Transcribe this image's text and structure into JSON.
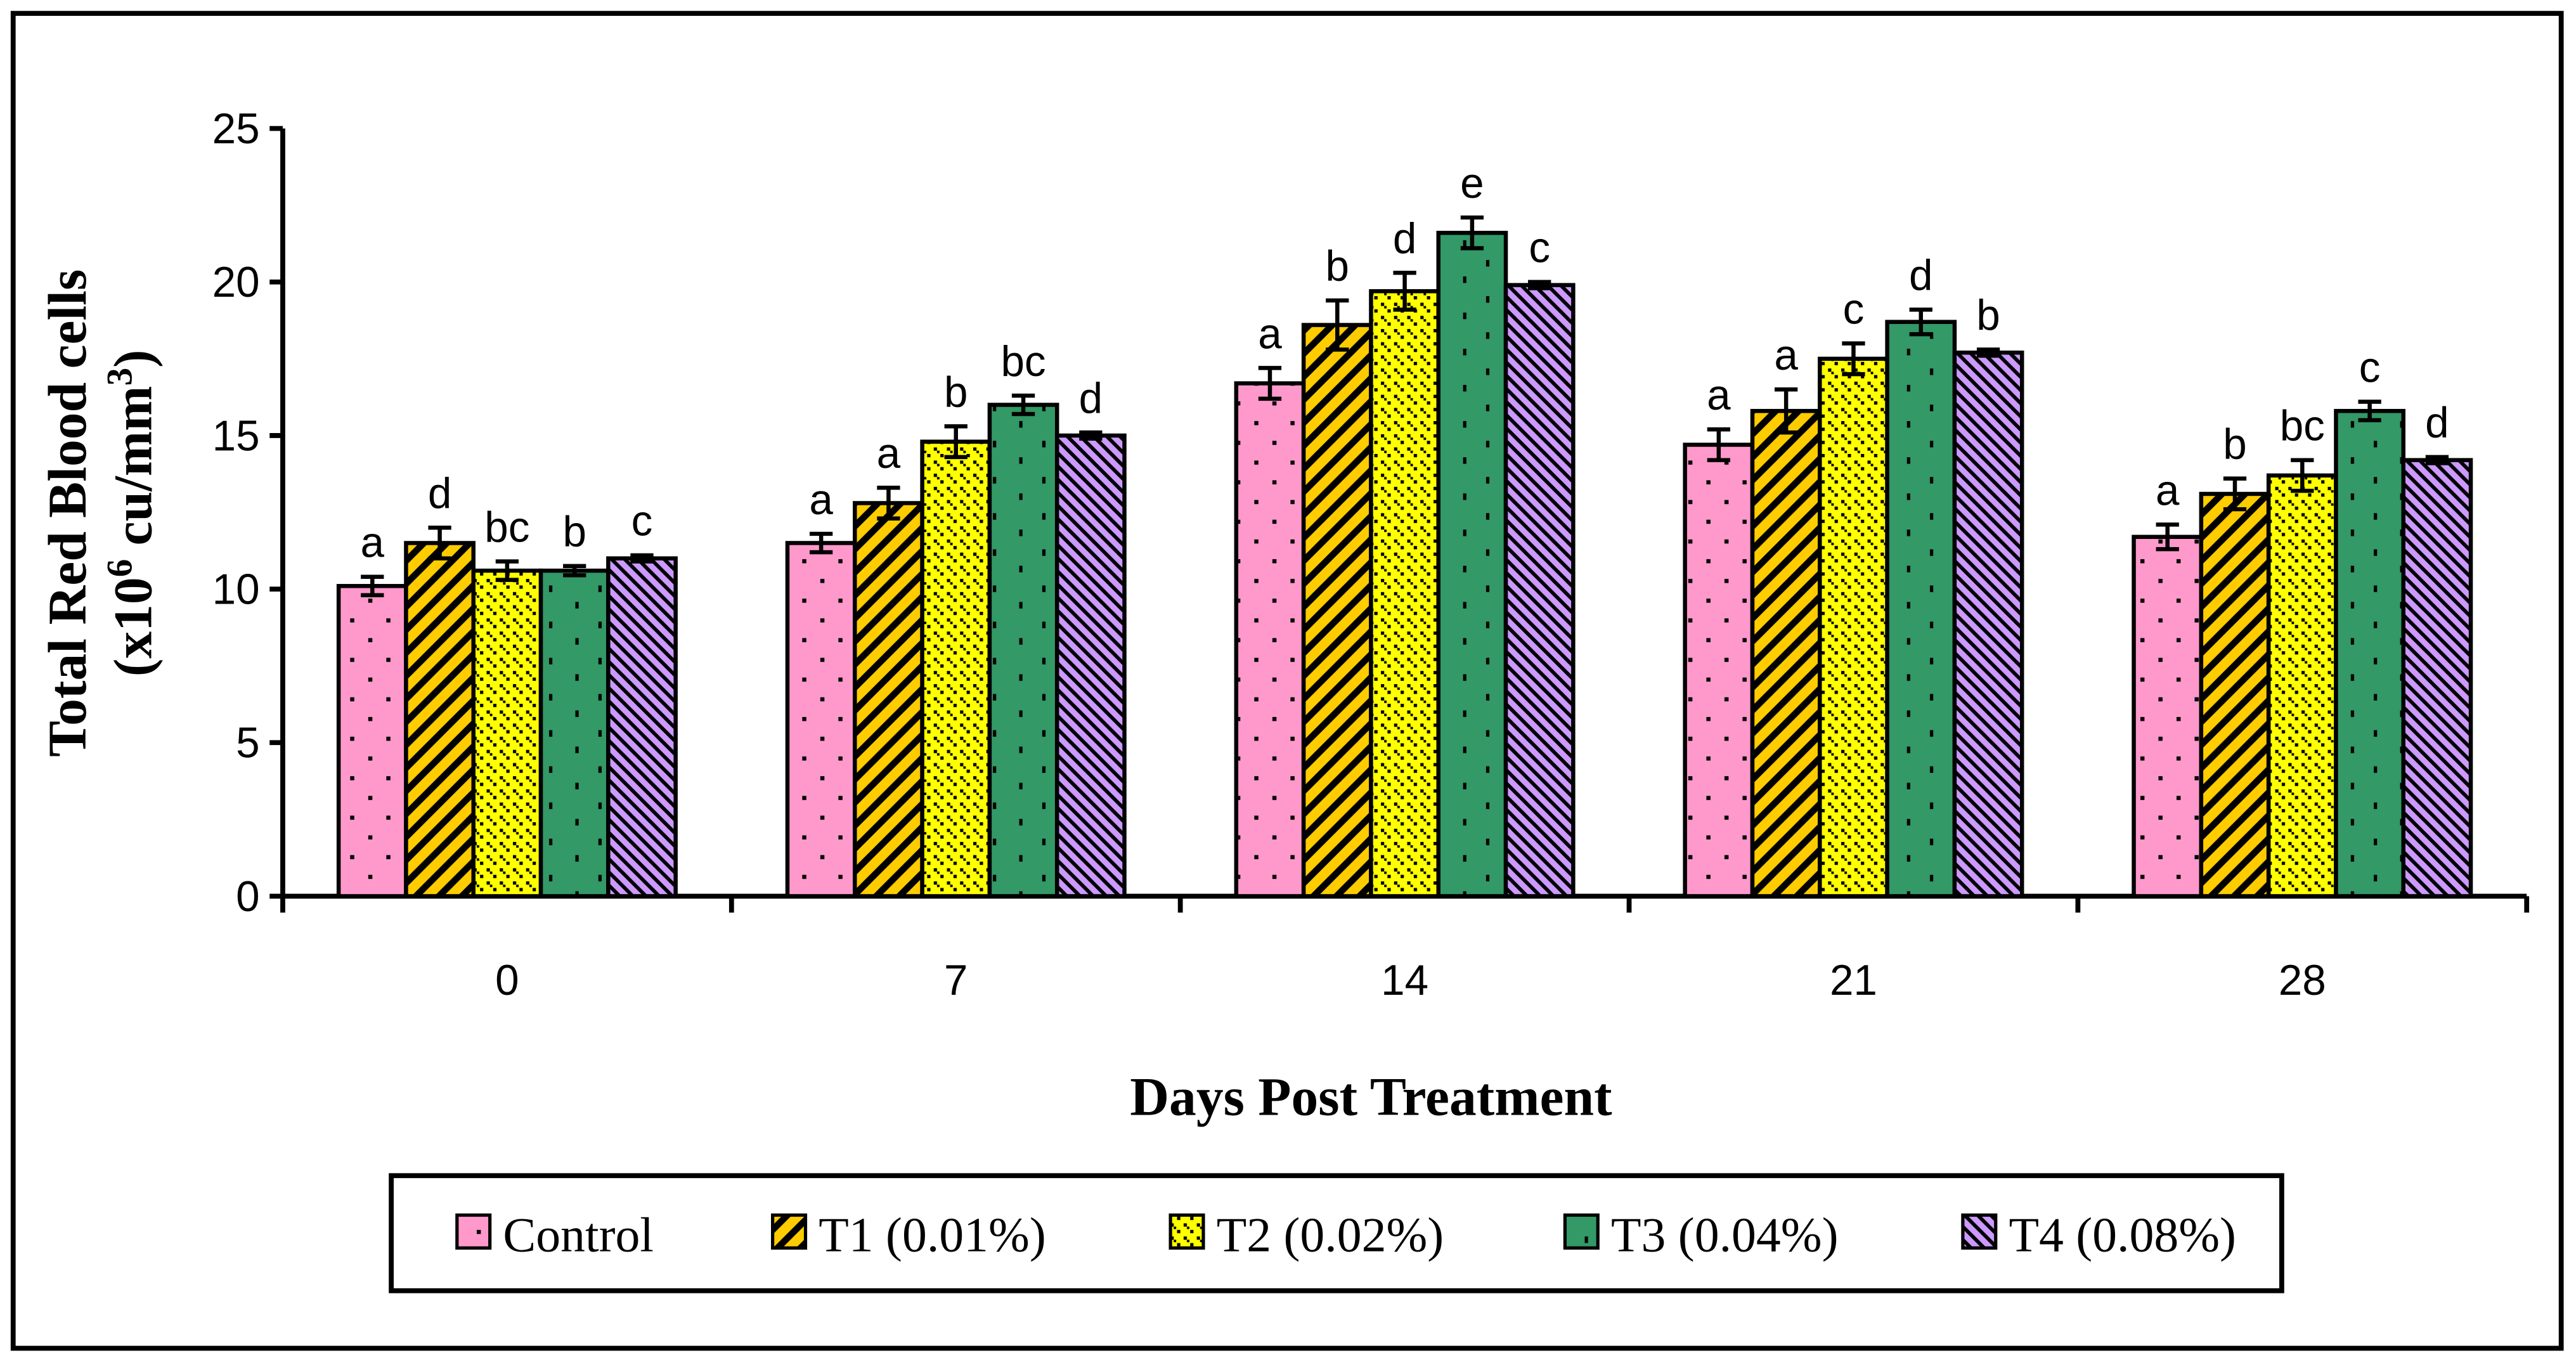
{
  "chart_data": {
    "type": "bar",
    "title": "",
    "xlabel": "Days Post Treatment",
    "ylabel_line1": "Total Red Blood cells",
    "ylabel_line2_prefix": "(x10",
    "ylabel_line2_sup1": "6",
    "ylabel_line2_mid": " cu/mm",
    "ylabel_line2_sup2": "3",
    "ylabel_line2_suffix": ")",
    "ylim": [
      0,
      25
    ],
    "yticks": [
      "0",
      "5",
      "10",
      "15",
      "20",
      "25"
    ],
    "categories": [
      "0",
      "7",
      "14",
      "21",
      "28"
    ],
    "legend_position": "bottom",
    "series": [
      {
        "name": "Control",
        "color": "#ff99cc",
        "pattern": "dots",
        "values": [
          10.1,
          11.5,
          16.7,
          14.7,
          11.7
        ],
        "errors": [
          0.3,
          0.3,
          0.5,
          0.5,
          0.4
        ],
        "letters": [
          "a",
          "a",
          "a",
          "a",
          "a"
        ]
      },
      {
        "name": "T1 (0.01%)",
        "color": "#ffcc00",
        "pattern": "diagonal",
        "values": [
          11.5,
          12.8,
          18.6,
          15.8,
          13.1
        ],
        "errors": [
          0.5,
          0.5,
          0.8,
          0.7,
          0.5
        ],
        "letters": [
          "d",
          "a",
          "b",
          "a",
          "b"
        ]
      },
      {
        "name": "T2 (0.02%)",
        "color": "#ffff00",
        "pattern": "checker",
        "values": [
          10.6,
          14.8,
          19.7,
          17.5,
          13.7
        ],
        "errors": [
          0.3,
          0.5,
          0.6,
          0.5,
          0.5
        ],
        "letters": [
          "bc",
          "b",
          "d",
          "c",
          "bc"
        ]
      },
      {
        "name": "T3 (0.04%)",
        "color": "#339966",
        "pattern": "sparse",
        "values": [
          10.6,
          16.0,
          21.6,
          18.7,
          15.8
        ],
        "errors": [
          0.15,
          0.3,
          0.5,
          0.4,
          0.3
        ],
        "letters": [
          "b",
          "bc",
          "e",
          "d",
          "c"
        ]
      },
      {
        "name": "T4 (0.08%)",
        "color": "#cc99ff",
        "pattern": "fine-diagonal",
        "values": [
          11.0,
          15.0,
          19.9,
          17.7,
          14.2
        ],
        "errors": [
          0.1,
          0.1,
          0.1,
          0.1,
          0.1
        ],
        "letters": [
          "c",
          "d",
          "c",
          "b",
          "d"
        ]
      }
    ]
  }
}
